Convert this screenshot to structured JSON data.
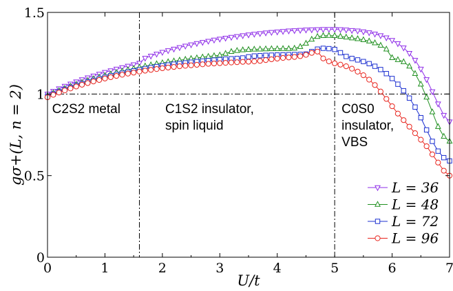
{
  "chart_data": {
    "type": "line",
    "xlabel": "U/t",
    "ylabel": "gσ+(L, n = 2)",
    "xlim": [
      0,
      7
    ],
    "ylim": [
      0,
      1.5
    ],
    "xticks": [
      0,
      1,
      2,
      3,
      4,
      5,
      6,
      7
    ],
    "yticks": [
      0,
      0.5,
      1,
      1.5
    ],
    "xtick_labels": [
      "0",
      "1",
      "2",
      "3",
      "4",
      "5",
      "6",
      "7"
    ],
    "ytick_labels": [
      "0",
      "0.5",
      "1",
      "1.5"
    ],
    "grid": false,
    "legend_placement": "bottom-right",
    "reference_lines": [
      {
        "orientation": "vertical",
        "value": 1.6,
        "style": "dash-dot"
      },
      {
        "orientation": "vertical",
        "value": 5.0,
        "style": "dash-dot"
      },
      {
        "orientation": "horizontal",
        "value": 1.0,
        "style": "dash-dot"
      }
    ],
    "annotations": [
      {
        "lines": [
          "C2S2 metal"
        ],
        "x": 0.08,
        "y": 0.96
      },
      {
        "lines": [
          "C1S2 insulator,",
          "spin liquid"
        ],
        "x": 2.05,
        "y": 0.96
      },
      {
        "lines": [
          "C0S0",
          "insulator,",
          "VBS"
        ],
        "x": 5.12,
        "y": 0.96
      }
    ],
    "series": [
      {
        "name": "L = 36",
        "color": "#8e2ce8",
        "marker": "triangle-down",
        "x": [
          0,
          0.1,
          0.2,
          0.3,
          0.4,
          0.5,
          0.6,
          0.7,
          0.8,
          0.9,
          1.0,
          1.1,
          1.2,
          1.3,
          1.4,
          1.5,
          1.6,
          1.7,
          1.8,
          1.9,
          2.0,
          2.1,
          2.2,
          2.3,
          2.4,
          2.5,
          2.6,
          2.7,
          2.8,
          2.9,
          3.0,
          3.1,
          3.2,
          3.3,
          3.4,
          3.5,
          3.6,
          3.7,
          3.8,
          3.9,
          4.0,
          4.1,
          4.2,
          4.3,
          4.4,
          4.5,
          4.6,
          4.7,
          4.8,
          4.9,
          5.0,
          5.1,
          5.2,
          5.3,
          5.4,
          5.5,
          5.6,
          5.7,
          5.8,
          5.9,
          6.0,
          6.1,
          6.2,
          6.3,
          6.4,
          6.5,
          6.6,
          6.7,
          6.8,
          6.9,
          7.0
        ],
        "values": [
          1.0,
          1.017,
          1.033,
          1.048,
          1.062,
          1.075,
          1.088,
          1.1,
          1.111,
          1.122,
          1.133,
          1.143,
          1.153,
          1.162,
          1.171,
          1.18,
          1.189,
          1.22,
          1.233,
          1.245,
          1.256,
          1.266,
          1.276,
          1.285,
          1.294,
          1.302,
          1.31,
          1.317,
          1.324,
          1.331,
          1.337,
          1.343,
          1.348,
          1.353,
          1.358,
          1.363,
          1.367,
          1.371,
          1.375,
          1.378,
          1.381,
          1.384,
          1.387,
          1.389,
          1.391,
          1.393,
          1.394,
          1.395,
          1.396,
          1.396,
          1.396,
          1.395,
          1.393,
          1.39,
          1.387,
          1.382,
          1.376,
          1.368,
          1.358,
          1.345,
          1.329,
          1.309,
          1.283,
          1.25,
          1.207,
          1.153,
          1.089,
          1.015,
          0.94,
          0.87,
          0.83
        ]
      },
      {
        "name": "L = 48",
        "color": "#1f8f1f",
        "marker": "triangle-up",
        "x": [
          0,
          0.1,
          0.2,
          0.3,
          0.4,
          0.5,
          0.6,
          0.7,
          0.8,
          0.9,
          1.0,
          1.1,
          1.2,
          1.3,
          1.4,
          1.5,
          1.6,
          1.7,
          1.8,
          1.9,
          2.0,
          2.1,
          2.2,
          2.3,
          2.4,
          2.5,
          2.6,
          2.7,
          2.8,
          2.9,
          3.0,
          3.1,
          3.2,
          3.3,
          3.4,
          3.5,
          3.6,
          3.7,
          3.8,
          3.9,
          4.0,
          4.1,
          4.2,
          4.3,
          4.4,
          4.5,
          4.6,
          4.7,
          4.8,
          4.9,
          5.0,
          5.1,
          5.2,
          5.3,
          5.4,
          5.5,
          5.6,
          5.7,
          5.8,
          5.9,
          6.0,
          6.1,
          6.2,
          6.3,
          6.4,
          6.5,
          6.6,
          6.7,
          6.8,
          6.9,
          7.0
        ],
        "values": [
          0.99,
          1.006,
          1.02,
          1.034,
          1.047,
          1.059,
          1.071,
          1.082,
          1.093,
          1.103,
          1.113,
          1.122,
          1.131,
          1.14,
          1.148,
          1.156,
          1.164,
          1.171,
          1.178,
          1.185,
          1.191,
          1.197,
          1.202,
          1.207,
          1.212,
          1.217,
          1.221,
          1.226,
          1.23,
          1.234,
          1.238,
          1.248,
          1.26,
          1.266,
          1.27,
          1.272,
          1.274,
          1.275,
          1.276,
          1.277,
          1.277,
          1.278,
          1.278,
          1.28,
          1.29,
          1.31,
          1.335,
          1.352,
          1.357,
          1.358,
          1.357,
          1.353,
          1.348,
          1.343,
          1.338,
          1.332,
          1.324,
          1.313,
          1.298,
          1.275,
          1.222,
          1.21,
          1.197,
          1.17,
          1.125,
          1.06,
          0.98,
          0.89,
          0.8,
          0.74,
          0.71
        ]
      },
      {
        "name": "L = 72",
        "color": "#1b2fd0",
        "marker": "square",
        "x": [
          0,
          0.1,
          0.2,
          0.3,
          0.4,
          0.5,
          0.6,
          0.7,
          0.8,
          0.9,
          1.0,
          1.1,
          1.2,
          1.3,
          1.4,
          1.5,
          1.6,
          1.7,
          1.8,
          1.9,
          2.0,
          2.1,
          2.2,
          2.3,
          2.4,
          2.5,
          2.6,
          2.7,
          2.8,
          2.9,
          3.0,
          3.1,
          3.2,
          3.3,
          3.4,
          3.5,
          3.6,
          3.7,
          3.8,
          3.9,
          4.0,
          4.1,
          4.2,
          4.3,
          4.4,
          4.5,
          4.6,
          4.7,
          4.8,
          4.9,
          5.0,
          5.1,
          5.2,
          5.3,
          5.4,
          5.5,
          5.6,
          5.7,
          5.8,
          5.9,
          6.0,
          6.1,
          6.2,
          6.3,
          6.4,
          6.5,
          6.6,
          6.7,
          6.8,
          6.9,
          7.0
        ],
        "values": [
          0.985,
          1.0,
          1.014,
          1.027,
          1.04,
          1.052,
          1.063,
          1.074,
          1.084,
          1.094,
          1.103,
          1.112,
          1.12,
          1.128,
          1.135,
          1.142,
          1.149,
          1.156,
          1.162,
          1.168,
          1.173,
          1.178,
          1.183,
          1.187,
          1.191,
          1.195,
          1.199,
          1.202,
          1.205,
          1.208,
          1.211,
          1.214,
          1.216,
          1.218,
          1.221,
          1.228,
          1.233,
          1.235,
          1.237,
          1.238,
          1.239,
          1.24,
          1.241,
          1.242,
          1.243,
          1.245,
          1.26,
          1.275,
          1.28,
          1.278,
          1.273,
          1.253,
          1.23,
          1.218,
          1.209,
          1.199,
          1.186,
          1.17,
          1.15,
          1.125,
          1.095,
          1.06,
          1.02,
          0.975,
          0.92,
          0.855,
          0.78,
          0.71,
          0.65,
          0.61,
          0.59
        ]
      },
      {
        "name": "L = 96",
        "color": "#e8231c",
        "marker": "circle",
        "x": [
          0,
          0.1,
          0.2,
          0.3,
          0.4,
          0.5,
          0.6,
          0.7,
          0.8,
          0.9,
          1.0,
          1.1,
          1.2,
          1.3,
          1.4,
          1.5,
          1.6,
          1.7,
          1.8,
          1.9,
          2.0,
          2.1,
          2.2,
          2.3,
          2.4,
          2.5,
          2.6,
          2.7,
          2.8,
          2.9,
          3.0,
          3.1,
          3.2,
          3.3,
          3.4,
          3.5,
          3.6,
          3.7,
          3.8,
          3.9,
          4.0,
          4.1,
          4.2,
          4.3,
          4.4,
          4.5,
          4.6,
          4.7,
          4.8,
          4.9,
          5.0,
          5.1,
          5.2,
          5.3,
          5.4,
          5.5,
          5.6,
          5.7,
          5.8,
          5.9,
          6.0,
          6.1,
          6.2,
          6.3,
          6.4,
          6.5,
          6.6,
          6.7,
          6.8,
          6.9,
          7.0
        ],
        "values": [
          0.98,
          0.995,
          1.009,
          1.022,
          1.034,
          1.046,
          1.057,
          1.067,
          1.077,
          1.086,
          1.095,
          1.103,
          1.111,
          1.118,
          1.125,
          1.131,
          1.137,
          1.143,
          1.148,
          1.153,
          1.158,
          1.162,
          1.166,
          1.17,
          1.173,
          1.176,
          1.179,
          1.182,
          1.185,
          1.187,
          1.189,
          1.191,
          1.193,
          1.195,
          1.197,
          1.198,
          1.2,
          1.203,
          1.208,
          1.213,
          1.217,
          1.221,
          1.224,
          1.227,
          1.232,
          1.24,
          1.252,
          1.26,
          1.218,
          1.2,
          1.188,
          1.18,
          1.17,
          1.155,
          1.137,
          1.115,
          1.088,
          1.055,
          1.015,
          0.97,
          0.925,
          0.88,
          0.84,
          0.8,
          0.76,
          0.72,
          0.68,
          0.63,
          0.58,
          0.53,
          0.5
        ]
      }
    ]
  }
}
